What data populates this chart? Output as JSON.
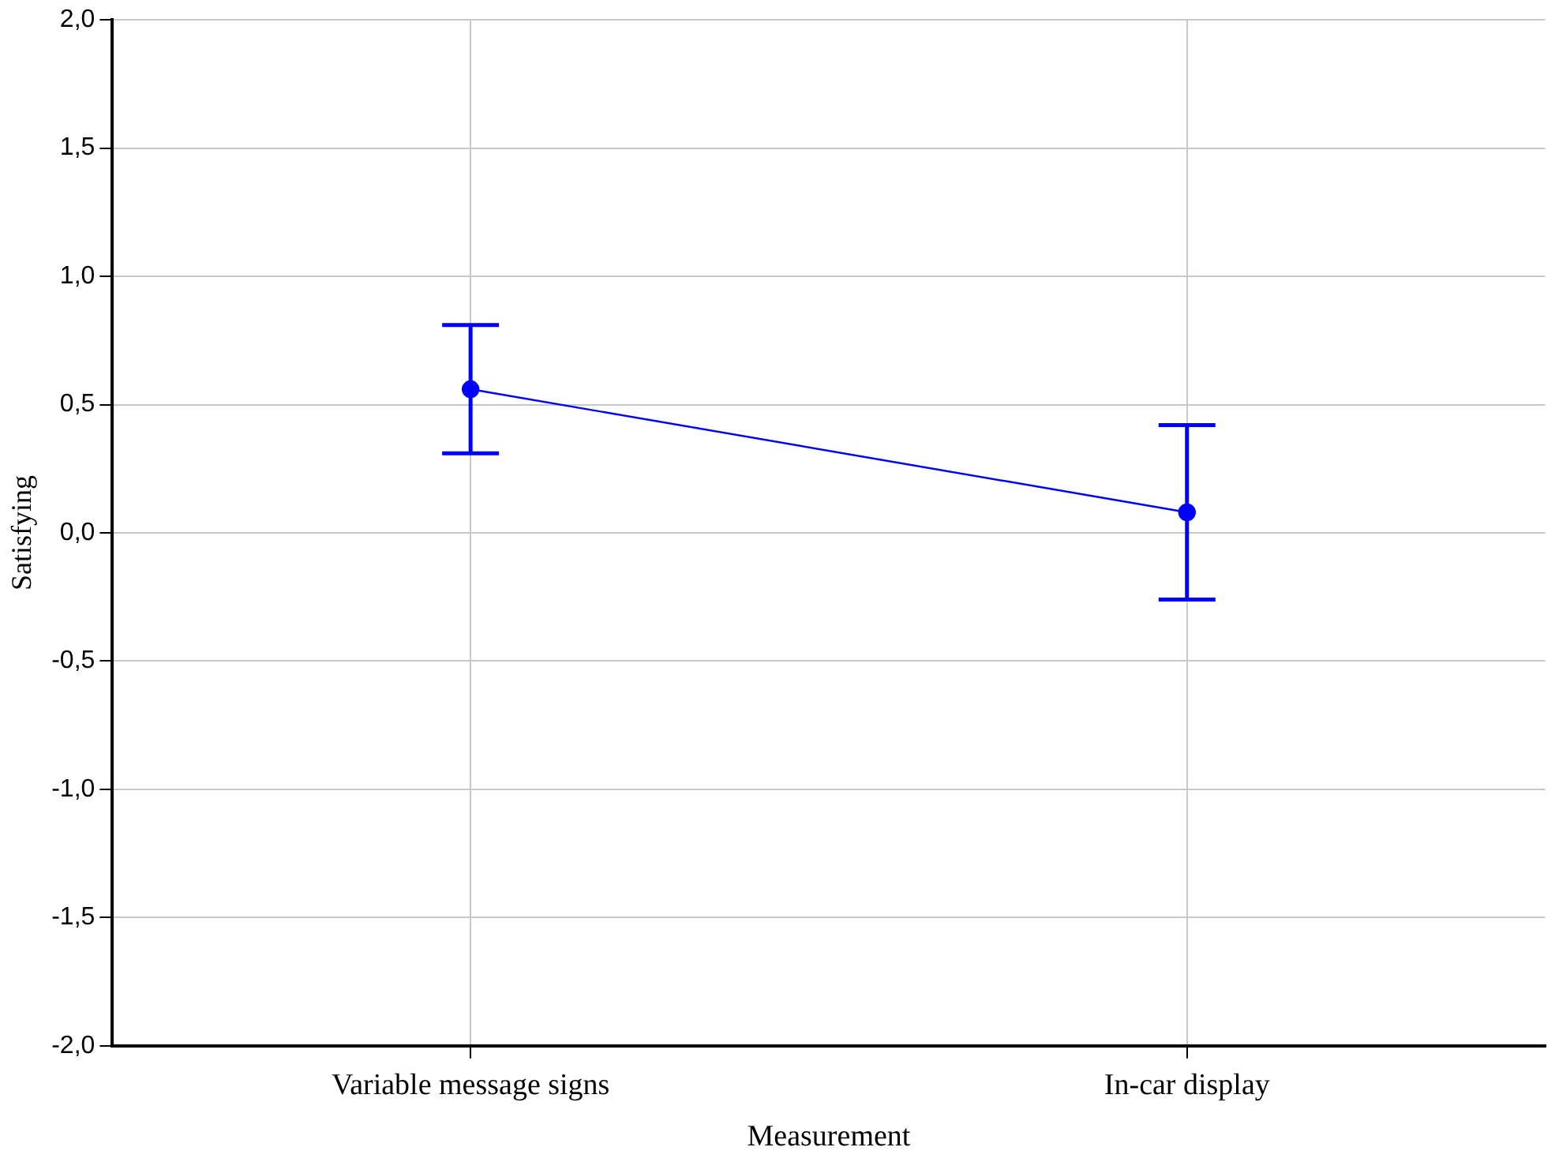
{
  "chart_data": {
    "type": "line",
    "xlabel": "Measurement",
    "ylabel": "Satisfying",
    "categories": [
      "Variable message signs",
      "In-car display"
    ],
    "series": [
      {
        "color": "#0000ff",
        "values": [
          0.56,
          0.08
        ],
        "errors": [
          0.25,
          0.34
        ]
      }
    ],
    "ylim": [
      -2,
      2
    ],
    "yticks": [
      {
        "value": -2,
        "label": "-2,0"
      },
      {
        "value": -1.5,
        "label": "-1,5"
      },
      {
        "value": -1,
        "label": "-1,0"
      },
      {
        "value": -0.5,
        "label": "-0,5"
      },
      {
        "value": 0,
        "label": "0,0"
      },
      {
        "value": 0.5,
        "label": "0,5"
      },
      {
        "value": 1,
        "label": "1,0"
      },
      {
        "value": 1.5,
        "label": "1,5"
      },
      {
        "value": 2,
        "label": "2,0"
      }
    ],
    "grid": true,
    "marker": "circle",
    "line_style": "solid",
    "legend": false
  }
}
